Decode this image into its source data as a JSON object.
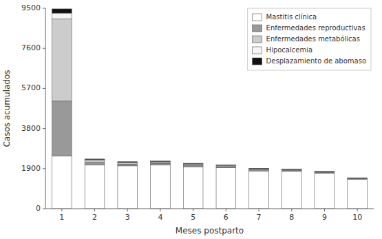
{
  "chart_data": {
    "type": "bar",
    "stacked": true,
    "xlabel": "Meses postparto",
    "ylabel": "Casos acumulados",
    "categories": [
      "1",
      "2",
      "3",
      "4",
      "5",
      "6",
      "7",
      "8",
      "9",
      "10"
    ],
    "series": [
      {
        "name": "Mastitis clínica",
        "color": "#ffffff",
        "values": [
          2500,
          2080,
          2030,
          2070,
          1990,
          1940,
          1790,
          1770,
          1690,
          1400
        ]
      },
      {
        "name": "Enfermedades reproductivas",
        "color": "#999999",
        "values": [
          2600,
          120,
          80,
          75,
          65,
          55,
          48,
          38,
          30,
          25
        ]
      },
      {
        "name": "Enfermedades metabólicas",
        "color": "#cccccc",
        "values": [
          3900,
          90,
          70,
          65,
          55,
          50,
          45,
          40,
          30,
          25
        ]
      },
      {
        "name": "Hipocalcemia",
        "color": "#f5f5f5",
        "values": [
          270,
          40,
          30,
          30,
          25,
          20,
          18,
          16,
          12,
          10
        ]
      },
      {
        "name": "Desplazamiento de abomaso",
        "color": "#111111",
        "values": [
          200,
          25,
          18,
          18,
          16,
          13,
          11,
          9,
          7,
          5
        ]
      }
    ],
    "ylim": [
      0,
      9500
    ],
    "yticks": [
      0,
      1900,
      3800,
      5700,
      7600,
      9500
    ],
    "grid": false,
    "legend": "upper right"
  }
}
